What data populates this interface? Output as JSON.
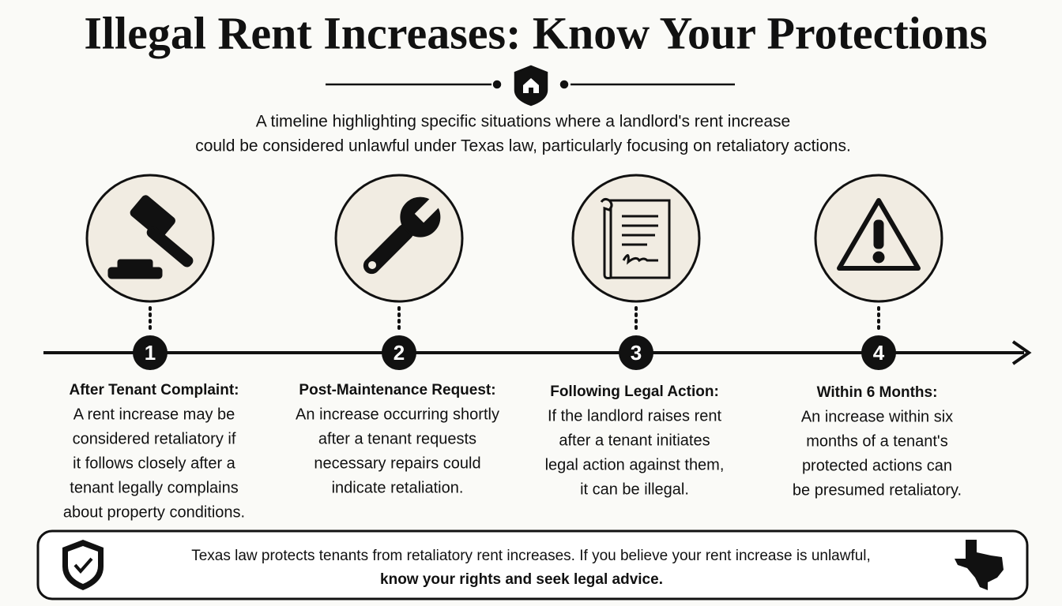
{
  "header": {
    "title": "Illegal Rent Increases: Know Your Protections",
    "subtitle": [
      "A timeline highlighting specific situations where a landlord's rent increase",
      "could be considered unlawful under Texas law, particularly focusing on retaliatory actions."
    ]
  },
  "steps": [
    {
      "number": 1,
      "title": "After Tenant Complaint:",
      "body": [
        "A rent increase may be",
        "considered retaliatory if",
        "it follows closely after a",
        "tenant legally complains",
        "about property conditions."
      ]
    },
    {
      "number": 2,
      "title": "Post-Maintenance Request:",
      "body": [
        "An increase occurring shortly",
        "after a tenant requests",
        "necessary repairs could",
        "indicate retaliation."
      ]
    },
    {
      "number": 3,
      "title": "Following Legal Action:",
      "body": [
        "If the landlord raises rent",
        "after a tenant initiates",
        "legal action against them,",
        "it can be illegal."
      ]
    },
    {
      "number": 4,
      "title": "Within 6 Months:",
      "body": [
        "An increase within six",
        "months of a tenant's",
        "protected actions can",
        "be presumed retaliatory."
      ]
    }
  ],
  "footer": {
    "text": "Texas law protects tenants from retaliatory rent increases. If you believe your rent increase is unlawful,",
    "emphasis": "know your rights and seek legal advice."
  }
}
